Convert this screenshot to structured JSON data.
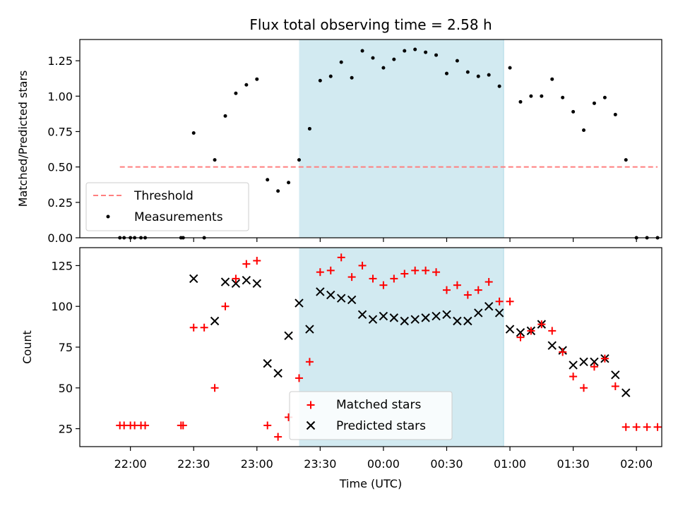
{
  "title": "Flux total observing time = 2.58 h",
  "xlabel": "Time (UTC)",
  "x_tick_labels": [
    "22:00",
    "22:30",
    "23:00",
    "23:30",
    "00:00",
    "00:30",
    "01:00",
    "01:30",
    "02:00"
  ],
  "x_tick_minutes": [
    0,
    30,
    60,
    90,
    120,
    150,
    180,
    210,
    240
  ],
  "chart_data": [
    {
      "type": "scatter",
      "panel": "top",
      "ylabel": "Matched/Predicted stars",
      "ylim": [
        0,
        1.4
      ],
      "yticks": [
        0.0,
        0.25,
        0.5,
        0.75,
        1.0,
        1.25
      ],
      "ytick_labels": [
        "0.00",
        "0.25",
        "0.50",
        "0.75",
        "1.00",
        "1.25"
      ],
      "xlim": [
        "21:36",
        "02:12"
      ],
      "shaded_interval": [
        "23:20",
        "00:57"
      ],
      "shade_color": "#add8e6",
      "legend_position": "lower left",
      "threshold": {
        "name": "Threshold",
        "value": 0.5,
        "x_range": [
          "21:55",
          "02:10"
        ],
        "color": "#ff7f7f",
        "style": "dashed"
      },
      "series": [
        {
          "name": "Measurements",
          "color": "#000000",
          "marker": "dot",
          "points": [
            [
              "21:55",
              0
            ],
            [
              "21:57",
              0
            ],
            [
              "22:00",
              0
            ],
            [
              "22:02",
              0
            ],
            [
              "22:05",
              0
            ],
            [
              "22:07",
              0
            ],
            [
              "22:24",
              0
            ],
            [
              "22:25",
              0
            ],
            [
              "22:30",
              0.74
            ],
            [
              "22:35",
              0
            ],
            [
              "22:40",
              0.55
            ],
            [
              "22:45",
              0.86
            ],
            [
              "22:50",
              1.02
            ],
            [
              "22:55",
              1.08
            ],
            [
              "23:00",
              1.12
            ],
            [
              "23:05",
              0.41
            ],
            [
              "23:10",
              0.33
            ],
            [
              "23:15",
              0.39
            ],
            [
              "23:20",
              0.55
            ],
            [
              "23:25",
              0.77
            ],
            [
              "23:30",
              1.11
            ],
            [
              "23:35",
              1.14
            ],
            [
              "23:40",
              1.24
            ],
            [
              "23:45",
              1.13
            ],
            [
              "23:50",
              1.32
            ],
            [
              "23:55",
              1.27
            ],
            [
              "00:00",
              1.2
            ],
            [
              "00:05",
              1.26
            ],
            [
              "00:10",
              1.32
            ],
            [
              "00:15",
              1.33
            ],
            [
              "00:20",
              1.31
            ],
            [
              "00:25",
              1.29
            ],
            [
              "00:30",
              1.16
            ],
            [
              "00:35",
              1.25
            ],
            [
              "00:40",
              1.17
            ],
            [
              "00:45",
              1.14
            ],
            [
              "00:50",
              1.15
            ],
            [
              "00:55",
              1.07
            ],
            [
              "01:00",
              1.2
            ],
            [
              "01:05",
              0.96
            ],
            [
              "01:10",
              1.0
            ],
            [
              "01:15",
              1.0
            ],
            [
              "01:20",
              1.12
            ],
            [
              "01:25",
              0.99
            ],
            [
              "01:30",
              0.89
            ],
            [
              "01:35",
              0.76
            ],
            [
              "01:40",
              0.95
            ],
            [
              "01:45",
              0.99
            ],
            [
              "01:50",
              0.87
            ],
            [
              "01:55",
              0.55
            ],
            [
              "02:00",
              0
            ],
            [
              "02:05",
              0
            ],
            [
              "02:10",
              0
            ]
          ]
        }
      ]
    },
    {
      "type": "scatter",
      "panel": "bottom",
      "ylabel": "Count",
      "ylim": [
        14,
        136
      ],
      "yticks": [
        25,
        50,
        75,
        100,
        125
      ],
      "ytick_labels": [
        "25",
        "50",
        "75",
        "100",
        "125"
      ],
      "xlim": [
        "21:36",
        "02:12"
      ],
      "shaded_interval": [
        "23:20",
        "00:57"
      ],
      "shade_color": "#add8e6",
      "legend_position": "lower center",
      "series": [
        {
          "name": "Matched stars",
          "color": "#ff0000",
          "marker": "plus",
          "points": [
            [
              "21:55",
              27
            ],
            [
              "21:57",
              27
            ],
            [
              "22:00",
              27
            ],
            [
              "22:02",
              27
            ],
            [
              "22:05",
              27
            ],
            [
              "22:07",
              27
            ],
            [
              "22:24",
              27
            ],
            [
              "22:25",
              27
            ],
            [
              "22:30",
              87
            ],
            [
              "22:35",
              87
            ],
            [
              "22:40",
              50
            ],
            [
              "22:45",
              100
            ],
            [
              "22:50",
              117
            ],
            [
              "22:55",
              126
            ],
            [
              "23:00",
              128
            ],
            [
              "23:05",
              27
            ],
            [
              "23:10",
              20
            ],
            [
              "23:15",
              32
            ],
            [
              "23:20",
              56
            ],
            [
              "23:25",
              66
            ],
            [
              "23:30",
              121
            ],
            [
              "23:35",
              122
            ],
            [
              "23:40",
              130
            ],
            [
              "23:45",
              118
            ],
            [
              "23:50",
              125
            ],
            [
              "23:55",
              117
            ],
            [
              "00:00",
              113
            ],
            [
              "00:05",
              117
            ],
            [
              "00:10",
              120
            ],
            [
              "00:15",
              122
            ],
            [
              "00:20",
              122
            ],
            [
              "00:25",
              121
            ],
            [
              "00:30",
              110
            ],
            [
              "00:35",
              113
            ],
            [
              "00:40",
              107
            ],
            [
              "00:45",
              110
            ],
            [
              "00:50",
              115
            ],
            [
              "00:55",
              103
            ],
            [
              "01:00",
              103
            ],
            [
              "01:05",
              81
            ],
            [
              "01:10",
              85
            ],
            [
              "01:15",
              89
            ],
            [
              "01:20",
              85
            ],
            [
              "01:25",
              72
            ],
            [
              "01:30",
              57
            ],
            [
              "01:35",
              50
            ],
            [
              "01:40",
              63
            ],
            [
              "01:45",
              68
            ],
            [
              "01:50",
              51
            ],
            [
              "01:55",
              26
            ],
            [
              "02:00",
              26
            ],
            [
              "02:05",
              26
            ],
            [
              "02:10",
              26
            ]
          ]
        },
        {
          "name": "Predicted stars",
          "color": "#000000",
          "marker": "x",
          "points": [
            [
              "22:30",
              117
            ],
            [
              "22:40",
              91
            ],
            [
              "22:45",
              115
            ],
            [
              "22:50",
              114
            ],
            [
              "22:55",
              116
            ],
            [
              "23:00",
              114
            ],
            [
              "23:05",
              65
            ],
            [
              "23:10",
              59
            ],
            [
              "23:15",
              82
            ],
            [
              "23:20",
              102
            ],
            [
              "23:25",
              86
            ],
            [
              "23:30",
              109
            ],
            [
              "23:35",
              107
            ],
            [
              "23:40",
              105
            ],
            [
              "23:45",
              104
            ],
            [
              "23:50",
              95
            ],
            [
              "23:55",
              92
            ],
            [
              "00:00",
              94
            ],
            [
              "00:05",
              93
            ],
            [
              "00:10",
              91
            ],
            [
              "00:15",
              92
            ],
            [
              "00:20",
              93
            ],
            [
              "00:25",
              94
            ],
            [
              "00:30",
              95
            ],
            [
              "00:35",
              91
            ],
            [
              "00:40",
              91
            ],
            [
              "00:45",
              96
            ],
            [
              "00:50",
              100
            ],
            [
              "00:55",
              96
            ],
            [
              "01:00",
              86
            ],
            [
              "01:05",
              84
            ],
            [
              "01:10",
              85
            ],
            [
              "01:15",
              89
            ],
            [
              "01:20",
              76
            ],
            [
              "01:25",
              73
            ],
            [
              "01:30",
              64
            ],
            [
              "01:35",
              66
            ],
            [
              "01:40",
              66
            ],
            [
              "01:45",
              68
            ],
            [
              "01:50",
              58
            ],
            [
              "01:55",
              47
            ]
          ]
        }
      ]
    }
  ]
}
